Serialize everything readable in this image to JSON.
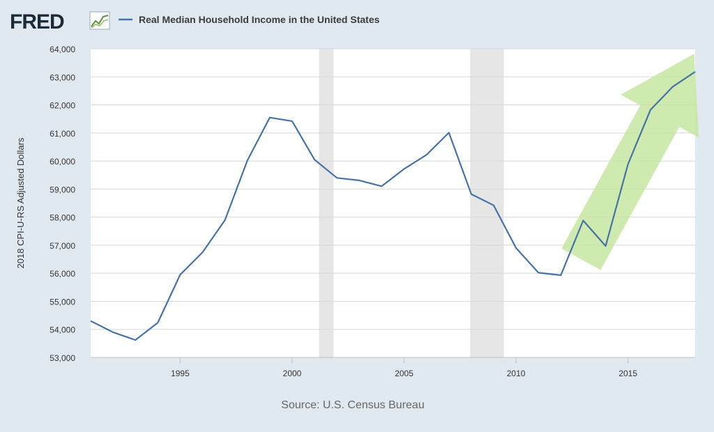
{
  "header": {
    "logo_text": "FRED",
    "legend_label": "Real Median Household Income in the United States"
  },
  "footer": {
    "source": "Source: U.S. Census Bureau"
  },
  "colors": {
    "line": "#4572a7",
    "background": "#e1e9f0",
    "plot_background": "#ffffff",
    "recession": "#e6e6e6",
    "grid": "#d8d8d8",
    "arrow": "#c5e6a0"
  },
  "chart_data": {
    "type": "line",
    "title": "",
    "xlabel": "",
    "ylabel": "2018 CPI-U-RS Adjusted Dollars",
    "xlim": [
      1991,
      2018
    ],
    "ylim": [
      53000,
      64000
    ],
    "xticks": [
      1995,
      2000,
      2005,
      2010,
      2015
    ],
    "yticks": [
      53000,
      54000,
      55000,
      56000,
      57000,
      58000,
      59000,
      60000,
      61000,
      62000,
      63000,
      64000
    ],
    "ytick_labels": [
      "53,000",
      "54,000",
      "55,000",
      "56,000",
      "57,000",
      "58,000",
      "59,000",
      "60,000",
      "61,000",
      "62,000",
      "63,000",
      "64,000"
    ],
    "grid": "horizontal",
    "legend_position": "top-left",
    "recessions": [
      {
        "start": 2001.2,
        "end": 2001.85
      },
      {
        "start": 2007.95,
        "end": 2009.45
      }
    ],
    "series": [
      {
        "name": "Real Median Household Income in the United States",
        "x": [
          1991,
          1992,
          1993,
          1994,
          1995,
          1996,
          1997,
          1998,
          1999,
          2000,
          2001,
          2002,
          2003,
          2004,
          2005,
          2006,
          2007,
          2008,
          2009,
          2010,
          2011,
          2012,
          2013,
          2014,
          2015,
          2016,
          2017,
          2018
        ],
        "y": [
          54300,
          53900,
          53620,
          54240,
          55950,
          56750,
          57900,
          60020,
          61550,
          61420,
          60050,
          59400,
          59310,
          59100,
          59720,
          60220,
          61010,
          58820,
          58420,
          56900,
          56020,
          55930,
          57880,
          56970,
          59890,
          61820,
          62650,
          63180
        ]
      }
    ],
    "annotation": {
      "type": "arrow",
      "description_shape": "upward trend arrow",
      "from": {
        "x": 2012.9,
        "y": 56500
      },
      "to": {
        "x": 2017.8,
        "y": 63600
      }
    }
  }
}
